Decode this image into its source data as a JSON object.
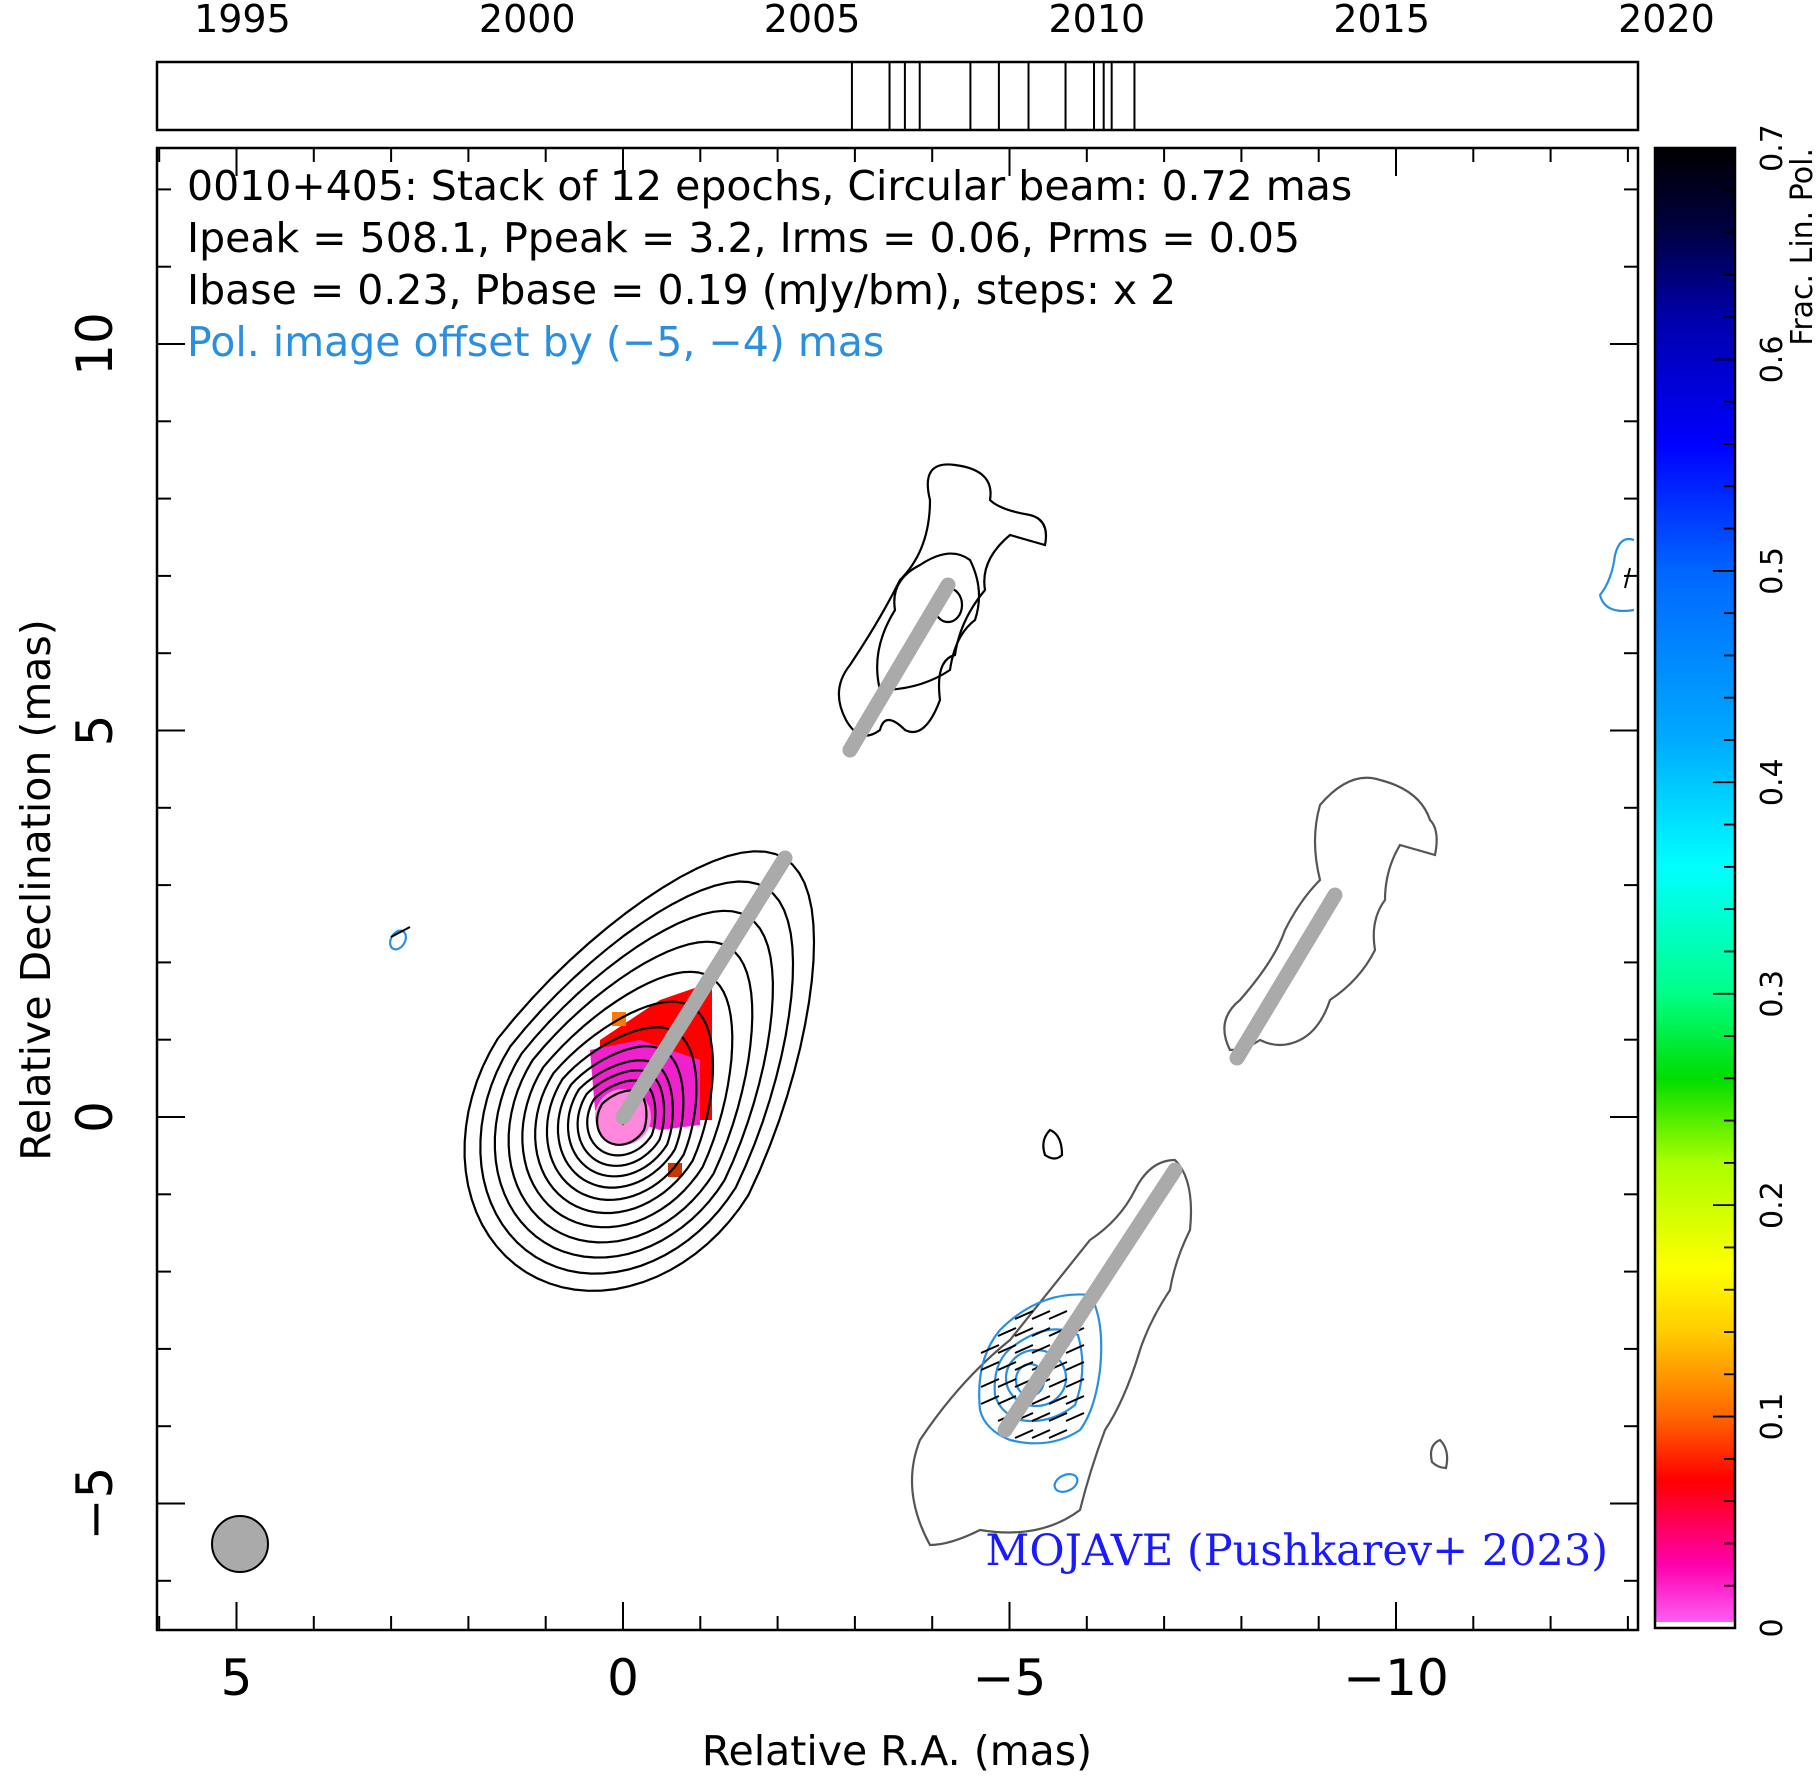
{
  "chart_data": {
    "type": "contour-map",
    "timeline": {
      "tick_labels": [
        "1995",
        "2000",
        "2005",
        "2010",
        "2015",
        "2020"
      ],
      "range": [
        1993.5,
        2019.5
      ],
      "epochs": [
        2005.7,
        2006.36,
        2006.63,
        2006.89,
        2007.78,
        2008.28,
        2008.8,
        2009.45,
        2009.95,
        2010.12,
        2010.26,
        2010.66
      ]
    },
    "annotations": {
      "line1": "0010+405: Stack of 12 epochs, Circular beam: 0.72 mas",
      "line2": "Ipeak = 508.1, Ppeak = 3.2, Irms = 0.06, Prms = 0.05",
      "line3": "Ibase = 0.23, Pbase = 0.19 (mJy/bm), steps: x 2",
      "line4": "Pol. image offset by (−5, −4) mas",
      "credit": "MOJAVE (Pushkarev+ 2023)"
    },
    "xlabel": "Relative R.A. (mas)",
    "ylabel": "Relative Declination (mas)",
    "x_tick_labels": [
      "5",
      "0",
      "−5",
      "−10"
    ],
    "y_tick_labels": [
      "10",
      "5",
      "0",
      "−5"
    ],
    "xlim": [
      6.2,
      -13
    ],
    "ylim": [
      -6.6,
      12.5
    ],
    "colorbar": {
      "label": "Frac. Lin. Pol.",
      "tick_labels": [
        "0",
        "0.1",
        "0.2",
        "0.3",
        "0.4",
        "0.5",
        "0.6",
        "0.7"
      ],
      "range": [
        0,
        0.7
      ]
    },
    "beam_diameter_mas": 0.72,
    "colors": {
      "total_intensity_contours": "#000000",
      "offset_contours": "#555555",
      "pol_contours": "#2a8fe0",
      "ridge_line": "#aaaaaa",
      "credit_text": "#1a1aff",
      "pol_text": "#2a8fe0"
    }
  }
}
